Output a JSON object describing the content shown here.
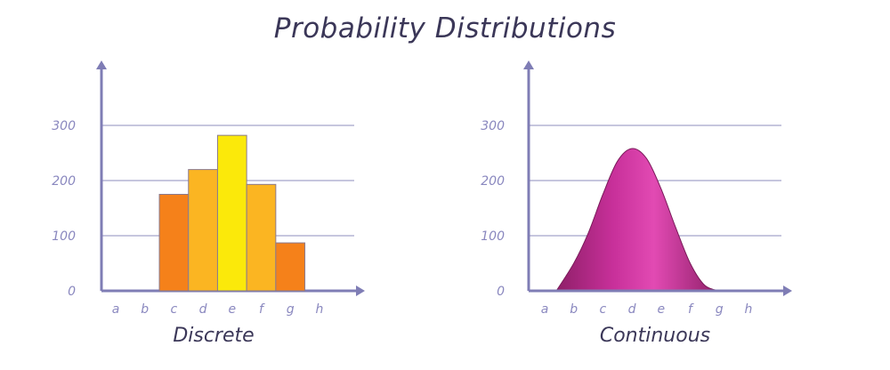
{
  "title": "Probability Distributions",
  "stock_id": "619363586",
  "chart_data": [
    {
      "type": "bar",
      "caption": "Discrete",
      "categories": [
        "a",
        "b",
        "c",
        "d",
        "e",
        "f",
        "g",
        "h"
      ],
      "values": [
        0,
        175,
        220,
        282,
        193,
        87,
        0,
        0
      ],
      "bar_colors": [
        "#f5811a",
        "#f5811a",
        "#fbb522",
        "#fbe90a",
        "#fbb522",
        "#f5811a",
        "#f5811a",
        "#f5811a"
      ],
      "yticks": [
        0,
        100,
        200,
        300
      ],
      "ylim": [
        0,
        400
      ],
      "grid": true
    },
    {
      "type": "area",
      "caption": "Continuous",
      "categories": [
        "a",
        "b",
        "c",
        "d",
        "e",
        "f",
        "g",
        "h"
      ],
      "x": [
        0.4,
        1,
        1.5,
        2,
        2.5,
        3,
        3.5,
        4,
        4.5,
        5,
        5.5,
        6.0
      ],
      "y": [
        0,
        50,
        105,
        175,
        235,
        258,
        240,
        185,
        115,
        50,
        10,
        0
      ],
      "fill_color": "#d23da3",
      "yticks": [
        0,
        100,
        200,
        300
      ],
      "ylim": [
        0,
        400
      ],
      "grid": true
    }
  ]
}
